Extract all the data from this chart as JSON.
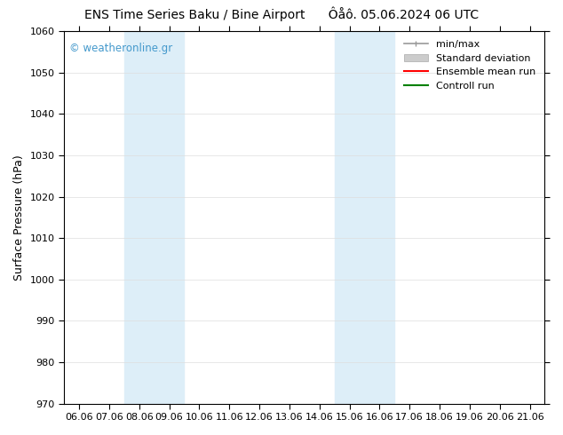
{
  "title_left": "ENS Time Series Baku / Bine Airport",
  "title_right": "Ôåô. 05.06.2024 06 UTC",
  "ylabel": "Surface Pressure (hPa)",
  "ylim": [
    970,
    1060
  ],
  "yticks": [
    970,
    980,
    990,
    1000,
    1010,
    1020,
    1030,
    1040,
    1050,
    1060
  ],
  "xlabels": [
    "06.06",
    "07.06",
    "08.06",
    "09.06",
    "10.06",
    "11.06",
    "12.06",
    "13.06",
    "14.06",
    "15.06",
    "16.06",
    "17.06",
    "18.06",
    "19.06",
    "20.06",
    "21.06"
  ],
  "shaded_regions": [
    {
      "xstart": 2,
      "xend": 4,
      "color": "#ddeef8"
    },
    {
      "xstart": 9,
      "xend": 11,
      "color": "#ddeef8"
    }
  ],
  "watermark_text": "© weatheronline.gr",
  "watermark_color": "#4499cc",
  "bg_color": "#ffffff",
  "grid_color": "#dddddd",
  "spine_color": "#000000",
  "title_fontsize": 10,
  "label_fontsize": 9,
  "tick_fontsize": 8,
  "legend_fontsize": 8
}
